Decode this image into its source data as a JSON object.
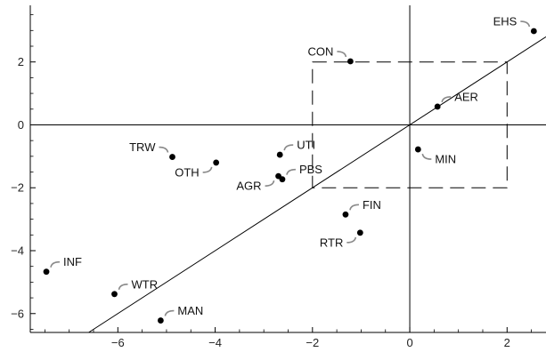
{
  "chart_data": {
    "type": "scatter",
    "title": "",
    "xlabel": "",
    "ylabel": "",
    "xlim": [
      -7.8,
      2.8
    ],
    "ylim": [
      -6.6,
      3.8
    ],
    "x_ticks": [
      -6,
      -4,
      -2,
      0,
      2
    ],
    "y_ticks": [
      -6,
      -4,
      -2,
      0,
      2
    ],
    "x_tick_labels": [
      "−6",
      "−4",
      "−2",
      "0",
      "2"
    ],
    "y_tick_labels": [
      "−6",
      "−4",
      "−2",
      "0",
      "2"
    ],
    "grid": false,
    "reference_lines": {
      "horizontal_y": 0,
      "vertical_x": 0,
      "diagonal": "y = x",
      "dashed_box": {
        "x": [
          -2,
          2
        ],
        "y": [
          -2,
          2
        ]
      }
    },
    "points": [
      {
        "label": "EHS",
        "x": 2.55,
        "y": 2.98,
        "label_pos": "upper-left"
      },
      {
        "label": "CON",
        "x": -1.22,
        "y": 2.02,
        "label_pos": "upper-left"
      },
      {
        "label": "AER",
        "x": 0.57,
        "y": 0.58,
        "label_pos": "upper-right"
      },
      {
        "label": "MIN",
        "x": 0.17,
        "y": -0.78,
        "label_pos": "lower-right"
      },
      {
        "label": "UTI",
        "x": -2.67,
        "y": -0.95,
        "label_pos": "upper-right"
      },
      {
        "label": "TRW",
        "x": -4.88,
        "y": -1.02,
        "label_pos": "upper-left"
      },
      {
        "label": "OTH",
        "x": -3.98,
        "y": -1.2,
        "label_pos": "lower-left"
      },
      {
        "label": "PBS",
        "x": -2.62,
        "y": -1.73,
        "label_pos": "upper-right"
      },
      {
        "label": "AGR",
        "x": -2.7,
        "y": -1.63,
        "label_pos": "lower-left"
      },
      {
        "label": "FIN",
        "x": -1.32,
        "y": -2.85,
        "label_pos": "upper-right"
      },
      {
        "label": "RTR",
        "x": -1.02,
        "y": -3.43,
        "label_pos": "lower-left"
      },
      {
        "label": "INF",
        "x": -7.47,
        "y": -4.67,
        "label_pos": "upper-right"
      },
      {
        "label": "WTR",
        "x": -6.07,
        "y": -5.38,
        "label_pos": "upper-right"
      },
      {
        "label": "MAN",
        "x": -5.12,
        "y": -6.22,
        "label_pos": "upper-right"
      }
    ]
  }
}
